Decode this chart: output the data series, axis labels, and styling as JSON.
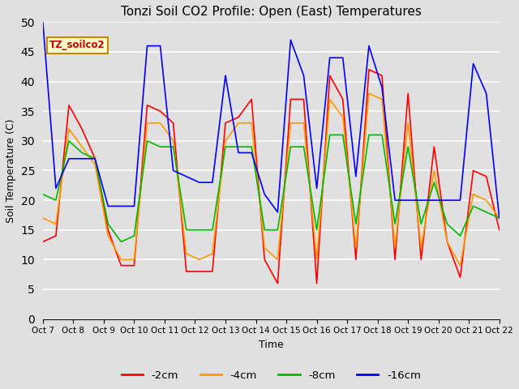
{
  "title": "Tonzi Soil CO2 Profile: Open (East) Temperatures",
  "xlabel": "Time",
  "ylabel": "Soil Temperature (C)",
  "ylim": [
    0,
    50
  ],
  "yticks": [
    0,
    5,
    10,
    15,
    20,
    25,
    30,
    35,
    40,
    45,
    50
  ],
  "x_labels": [
    "Oct 7",
    "Oct 8",
    "Oct 9",
    "Oct 10",
    "Oct 11",
    "Oct 12",
    "Oct 13",
    "Oct 14",
    "Oct 15",
    "Oct 16",
    "Oct 17",
    "Oct 18",
    "Oct 19",
    "Oct 20",
    "Oct 21",
    "Oct 22"
  ],
  "legend_labels": [
    "-2cm",
    "-4cm",
    "-8cm",
    "-16cm"
  ],
  "colors": [
    "#ff0000",
    "#ff9900",
    "#00bb00",
    "#0000ff"
  ],
  "annotation_text": "TZ_soilco2",
  "bg_color": "#e0e0e0",
  "plot_bg_color": "#e0e0e0",
  "series_2cm": [
    13,
    14,
    36,
    32,
    27,
    15,
    9,
    9,
    36,
    35,
    33,
    8,
    8,
    8,
    33,
    34,
    37,
    10,
    6,
    37,
    37,
    6,
    41,
    37,
    10,
    42,
    41,
    10,
    38,
    10,
    29,
    13,
    7,
    25,
    24,
    15
  ],
  "series_4cm": [
    17,
    16,
    32,
    29,
    26,
    14,
    10,
    10,
    33,
    33,
    30,
    11,
    10,
    11,
    30,
    33,
    33,
    12,
    10,
    33,
    33,
    10,
    37,
    34,
    12,
    38,
    37,
    12,
    33,
    12,
    25,
    13,
    9,
    21,
    20,
    17
  ],
  "series_8cm": [
    21,
    20,
    30,
    28,
    27,
    16,
    13,
    14,
    30,
    29,
    29,
    15,
    15,
    15,
    29,
    29,
    29,
    15,
    15,
    29,
    29,
    15,
    31,
    31,
    16,
    31,
    31,
    16,
    29,
    16,
    23,
    16,
    14,
    19,
    18,
    17
  ],
  "series_16cm": [
    50,
    22,
    27,
    27,
    27,
    19,
    19,
    19,
    46,
    46,
    25,
    24,
    23,
    23,
    41,
    28,
    28,
    21,
    18,
    47,
    41,
    22,
    44,
    44,
    24,
    46,
    39,
    20,
    20,
    20,
    20,
    20,
    20,
    43,
    38,
    17
  ],
  "n_points": 36,
  "figwidth": 6.4,
  "figheight": 4.8,
  "dpi": 100
}
